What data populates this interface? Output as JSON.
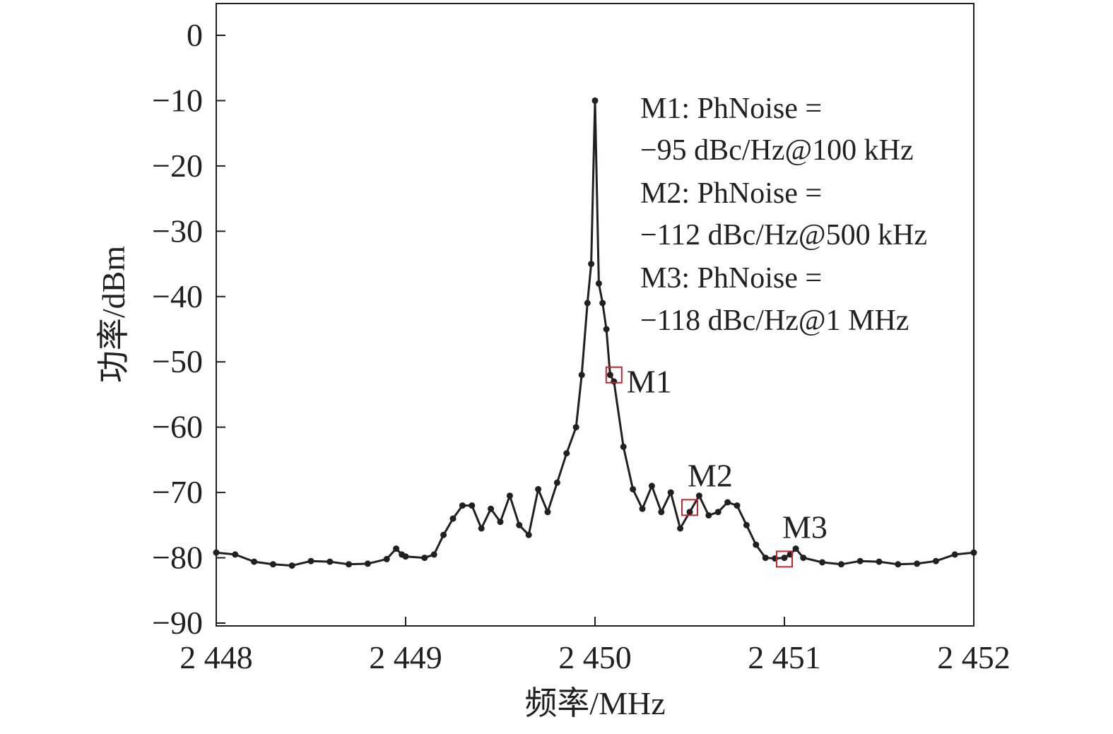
{
  "chart_data": {
    "type": "line",
    "xlabel": "频率/MHz",
    "ylabel": "功率/dBm",
    "xlim": [
      2448,
      2452
    ],
    "ylim": [
      -90,
      5
    ],
    "x_ticks": [
      2448,
      2449,
      2450,
      2451,
      2452
    ],
    "x_tick_labels": [
      "2 448",
      "2 449",
      "2 450",
      "2 451",
      "2 452"
    ],
    "y_ticks": [
      0,
      -10,
      -20,
      -30,
      -40,
      -50,
      -60,
      -70,
      -80,
      -90
    ],
    "y_tick_labels": [
      "0",
      "−10",
      "−20",
      "−30",
      "−40",
      "−50",
      "−60",
      "−70",
      "−80",
      "−90"
    ],
    "grid": false,
    "line_color": "#231f20",
    "marker_color": "#c0272d",
    "series": [
      {
        "x": [
          2448.0,
          2448.1,
          2448.2,
          2448.3,
          2448.4,
          2448.5,
          2448.6,
          2448.7,
          2448.8,
          2448.9,
          2448.95,
          2448.98,
          2449.0,
          2449.1,
          2449.15,
          2449.2,
          2449.25,
          2449.3,
          2449.35,
          2449.4,
          2449.45,
          2449.5,
          2449.55,
          2449.6,
          2449.65,
          2449.7,
          2449.75,
          2449.8,
          2449.85,
          2449.9,
          2449.93,
          2449.96,
          2449.98,
          2450.0,
          2450.02,
          2450.04,
          2450.06,
          2450.08,
          2450.1,
          2450.15,
          2450.2,
          2450.25,
          2450.3,
          2450.35,
          2450.4,
          2450.45,
          2450.5,
          2450.55,
          2450.6,
          2450.65,
          2450.7,
          2450.75,
          2450.8,
          2450.85,
          2450.9,
          2450.95,
          2451.0,
          2451.03,
          2451.06,
          2451.1,
          2451.2,
          2451.3,
          2451.4,
          2451.5,
          2451.6,
          2451.7,
          2451.8,
          2451.9,
          2452.0
        ],
        "y": [
          -79.2,
          -79.5,
          -80.6,
          -81.0,
          -81.2,
          -80.5,
          -80.6,
          -81.0,
          -80.9,
          -80.2,
          -78.6,
          -79.5,
          -79.8,
          -80.0,
          -79.5,
          -76.5,
          -74.0,
          -72.0,
          -72.0,
          -75.5,
          -72.5,
          -74.5,
          -70.5,
          -75.0,
          -76.5,
          -69.5,
          -73.0,
          -68.5,
          -64.0,
          -60.0,
          -52.0,
          -41.0,
          -35.0,
          -10.0,
          -38.0,
          -41.0,
          -45.0,
          -52.0,
          -53.0,
          -63.0,
          -69.5,
          -72.5,
          -69.0,
          -73.0,
          -70.0,
          -75.5,
          -73.0,
          -70.5,
          -73.5,
          -73.0,
          -71.5,
          -72.0,
          -75.0,
          -78.0,
          -80.0,
          -80.1,
          -80.0,
          -79.5,
          -78.6,
          -80.0,
          -80.7,
          -81.0,
          -80.5,
          -80.6,
          -81.0,
          -80.9,
          -80.5,
          -79.5,
          -79.2
        ]
      }
    ],
    "markers": [
      {
        "name": "M1",
        "x": 2450.1,
        "y": -52
      },
      {
        "name": "M2",
        "x": 2450.5,
        "y": -72.3
      },
      {
        "name": "M3",
        "x": 2451.0,
        "y": -80.2
      }
    ],
    "annotations": [
      "M1: PhNoise =",
      "−95 dBc/Hz@100 kHz",
      "M2: PhNoise =",
      "−112 dBc/Hz@500 kHz",
      "M3: PhNoise =",
      "−118 dBc/Hz@1 MHz"
    ]
  }
}
